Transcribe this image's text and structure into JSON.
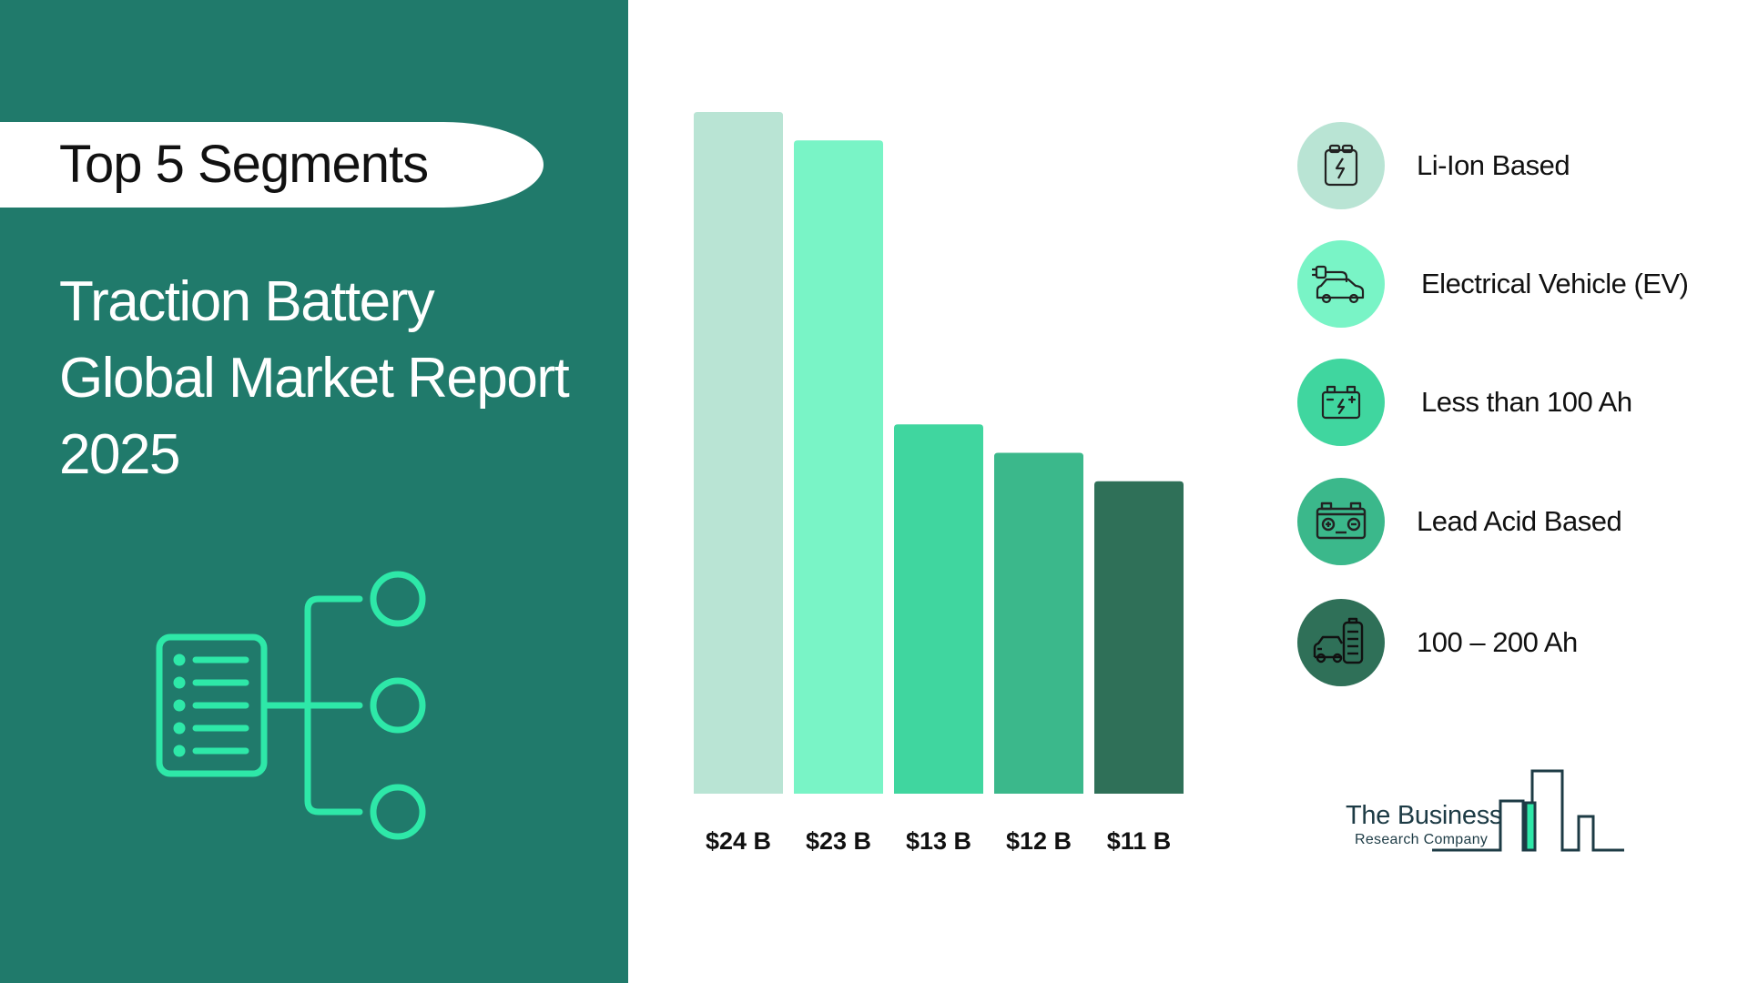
{
  "header": {
    "pill_label": "Top 5 Segments"
  },
  "report": {
    "title_lines": [
      "Traction Battery",
      "Global Market Report",
      "2025"
    ]
  },
  "colors": {
    "panel": "#207a6b",
    "accent": "#2ee8a8",
    "bars": [
      "#b9e4d4",
      "#79f4c6",
      "#40d69f",
      "#3bb88b",
      "#2f7058"
    ]
  },
  "chart_data": {
    "type": "bar",
    "categories": [
      "Li-Ion Based",
      "Electrical Vehicle (EV)",
      "Less than 100 Ah",
      "Lead Acid Based",
      "100 – 200 Ah"
    ],
    "values": [
      24,
      23,
      13,
      12,
      11
    ],
    "value_labels": [
      "$24 B",
      "$23 B",
      "$13 B",
      "$12 B",
      "$11 B"
    ],
    "unit": "$ B",
    "ylim": [
      0,
      24
    ],
    "grid": false,
    "legend": "right"
  },
  "legend": [
    {
      "label": "Li-Ion Based",
      "icon": "battery-cell-icon",
      "color": "#b9e4d4"
    },
    {
      "label": "Electrical Vehicle (EV)",
      "icon": "ev-car-plug-icon",
      "color": "#79f4c6"
    },
    {
      "label": "Less than 100 Ah",
      "icon": "car-battery-icon",
      "color": "#40d69f"
    },
    {
      "label": "Lead Acid Based",
      "icon": "lead-acid-battery-icon",
      "color": "#3bb88b"
    },
    {
      "label": "100 – 200 Ah",
      "icon": "car-with-battery-icon",
      "color": "#2f7058"
    }
  ],
  "brand": {
    "line1": "The Business",
    "line2": "Research Company"
  }
}
